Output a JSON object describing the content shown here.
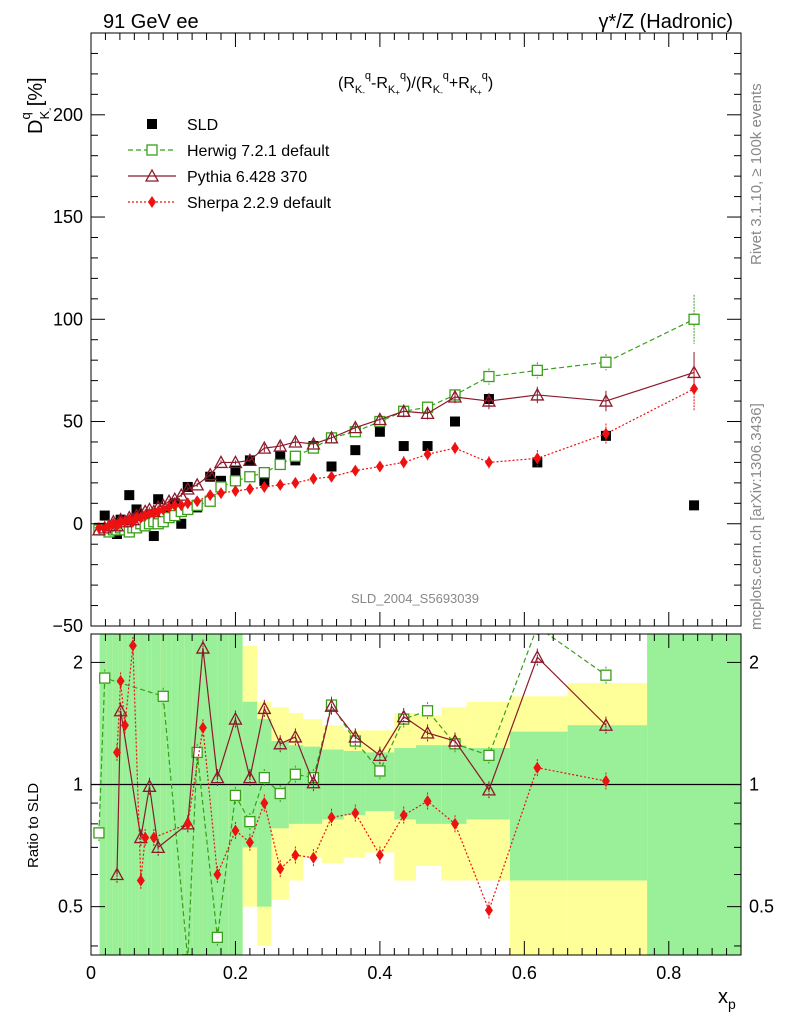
{
  "header": {
    "left_title": "91 GeV ee",
    "right_title": "γ*/Z (Hadronic)"
  },
  "side_labels": {
    "rivet": "Rivet 3.1.10, ≥ 100k events",
    "mcplots": "mcplots.cern.ch [arXiv:1306.3436]"
  },
  "watermark": "SLD_2004_S5693039",
  "chart_data": [
    {
      "type": "scatter",
      "name": "main",
      "title": "(R^q_K- - R^q_K+)/(R^q_K- + R^q_K+)",
      "ylabel": "D^q_K- [%]",
      "xlabel": "x_p",
      "xlim": [
        0,
        0.9
      ],
      "ylim": [
        -50,
        240
      ],
      "yticks": [
        -50,
        0,
        50,
        100,
        150,
        200
      ],
      "series": [
        {
          "name": "SLD",
          "color": "#000000",
          "marker": "square-filled",
          "x": [
            0.011,
            0.019,
            0.025,
            0.031,
            0.036,
            0.041,
            0.047,
            0.053,
            0.058,
            0.063,
            0.069,
            0.075,
            0.081,
            0.087,
            0.093,
            0.1,
            0.108,
            0.116,
            0.125,
            0.134,
            0.147,
            0.165,
            0.18,
            0.2,
            0.22,
            0.24,
            0.262,
            0.283,
            0.308,
            0.333,
            0.366,
            0.4,
            0.433,
            0.466,
            0.504,
            0.551,
            0.618,
            0.713,
            0.835
          ],
          "y": [
            -2,
            4,
            -3,
            -2,
            -5,
            2,
            1,
            14,
            0,
            7,
            -1,
            3,
            4,
            -6,
            12,
            1,
            4,
            10,
            0,
            18,
            8,
            23,
            21,
            26,
            31,
            21,
            33,
            31,
            38,
            28,
            36,
            45,
            38,
            38,
            50,
            61,
            30,
            43,
            9
          ]
        },
        {
          "name": "Herwig 7.2.1 default",
          "color": "#3a9e1a",
          "marker": "square-open",
          "line": "dashed",
          "x": [
            0.011,
            0.019,
            0.025,
            0.031,
            0.036,
            0.041,
            0.047,
            0.053,
            0.058,
            0.063,
            0.069,
            0.075,
            0.081,
            0.087,
            0.093,
            0.1,
            0.108,
            0.116,
            0.125,
            0.134,
            0.147,
            0.165,
            0.18,
            0.2,
            0.22,
            0.24,
            0.262,
            0.283,
            0.308,
            0.333,
            0.366,
            0.4,
            0.433,
            0.466,
            0.504,
            0.551,
            0.618,
            0.713,
            0.835
          ],
          "y": [
            -3,
            -3,
            -4,
            -3,
            -3,
            -2,
            -3,
            -4,
            -2,
            -2,
            0,
            -1,
            0,
            1,
            0,
            1,
            3,
            4,
            6,
            7,
            9,
            11,
            18,
            21,
            23,
            25,
            29,
            33,
            37,
            42,
            45,
            50,
            55,
            57,
            63,
            72,
            75,
            79,
            100
          ],
          "errors": [
            1,
            1,
            1,
            1,
            1,
            1,
            1,
            1,
            1,
            1,
            1,
            1,
            1,
            1,
            1,
            1,
            1,
            1,
            1,
            1,
            1,
            1,
            1,
            1,
            1,
            1,
            1,
            1,
            1,
            1,
            1,
            2,
            2,
            2,
            2,
            4,
            4,
            4,
            12
          ]
        },
        {
          "name": "Pythia 6.428 370",
          "color": "#8b1a2b",
          "marker": "triangle-open",
          "line": "solid",
          "x": [
            0.011,
            0.019,
            0.025,
            0.031,
            0.036,
            0.041,
            0.047,
            0.053,
            0.058,
            0.063,
            0.069,
            0.075,
            0.081,
            0.087,
            0.093,
            0.1,
            0.108,
            0.116,
            0.125,
            0.134,
            0.147,
            0.165,
            0.18,
            0.2,
            0.22,
            0.24,
            0.262,
            0.283,
            0.308,
            0.333,
            0.366,
            0.4,
            0.433,
            0.466,
            0.504,
            0.551,
            0.618,
            0.713,
            0.835
          ],
          "y": [
            -3,
            -2,
            -1,
            1,
            -1,
            2,
            1,
            3,
            2,
            4,
            5,
            6,
            7,
            6,
            8,
            9,
            11,
            12,
            14,
            17,
            19,
            24,
            30,
            30,
            31,
            37,
            38,
            40,
            39,
            42,
            47,
            51,
            55,
            54,
            62,
            60,
            63,
            60,
            74
          ],
          "errors": [
            1,
            1,
            1,
            1,
            1,
            1,
            1,
            1,
            1,
            1,
            1,
            1,
            1,
            1,
            1,
            1,
            1,
            1,
            1,
            1,
            1,
            1,
            1,
            1,
            1,
            2,
            2,
            2,
            2,
            2,
            2,
            2,
            3,
            3,
            3,
            4,
            4,
            5,
            10
          ]
        },
        {
          "name": "Sherpa 2.2.9 default",
          "color": "#ee1111",
          "marker": "diamond-filled",
          "line": "dotted",
          "x": [
            0.011,
            0.019,
            0.025,
            0.031,
            0.036,
            0.041,
            0.047,
            0.053,
            0.058,
            0.063,
            0.069,
            0.075,
            0.081,
            0.087,
            0.093,
            0.1,
            0.108,
            0.116,
            0.125,
            0.134,
            0.147,
            0.165,
            0.18,
            0.2,
            0.22,
            0.24,
            0.262,
            0.283,
            0.308,
            0.333,
            0.366,
            0.4,
            0.433,
            0.466,
            0.504,
            0.551,
            0.618,
            0.713,
            0.835
          ],
          "y": [
            -2,
            -2,
            -1,
            0,
            -1,
            1,
            1,
            2,
            1,
            3,
            3,
            4,
            5,
            5,
            6,
            7,
            8,
            9,
            9,
            10,
            11,
            14,
            15,
            16,
            17,
            18,
            19,
            20,
            22,
            23,
            26,
            28,
            30,
            34,
            37,
            30,
            32,
            44,
            66
          ],
          "errors": [
            1,
            1,
            1,
            1,
            1,
            1,
            1,
            1,
            1,
            1,
            1,
            1,
            1,
            1,
            1,
            1,
            1,
            1,
            1,
            1,
            1,
            1,
            1,
            1,
            1,
            1,
            1,
            2,
            2,
            2,
            2,
            2,
            3,
            3,
            3,
            3,
            4,
            5,
            11
          ]
        }
      ]
    },
    {
      "type": "scatter",
      "name": "ratio",
      "ylabel": "Ratio to SLD",
      "xlabel": "x_p",
      "xlim": [
        0,
        0.9
      ],
      "ylim": [
        0.38,
        2.35
      ],
      "yscale": "log",
      "yticks": [
        0.5,
        1,
        2
      ],
      "xticks": [
        0,
        0.2,
        0.4,
        0.6,
        0.8
      ],
      "bands": {
        "edges": [
          0.012,
          0.022,
          0.03,
          0.038,
          0.044,
          0.05,
          0.056,
          0.061,
          0.066,
          0.072,
          0.078,
          0.084,
          0.09,
          0.096,
          0.104,
          0.112,
          0.12,
          0.13,
          0.14,
          0.155,
          0.175,
          0.19,
          0.21,
          0.23,
          0.25,
          0.274,
          0.294,
          0.32,
          0.35,
          0.38,
          0.42,
          0.45,
          0.485,
          0.52,
          0.58,
          0.66,
          0.77,
          0.9
        ],
        "yellow": [
          [
            0.38,
            2.35
          ],
          [
            0.38,
            2.35
          ],
          [
            0.38,
            2.35
          ],
          [
            0.38,
            2.35
          ],
          [
            0.38,
            2.35
          ],
          [
            0.38,
            2.35
          ],
          [
            0.38,
            2.35
          ],
          [
            0.38,
            2.35
          ],
          [
            0.38,
            2.35
          ],
          [
            0.38,
            2.35
          ],
          [
            0.38,
            2.35
          ],
          [
            0.38,
            2.35
          ],
          [
            0.38,
            2.35
          ],
          [
            0.38,
            2.35
          ],
          [
            0.38,
            2.35
          ],
          [
            0.38,
            2.35
          ],
          [
            0.38,
            2.35
          ],
          [
            0.38,
            2.35
          ],
          [
            0.38,
            2.35
          ],
          [
            0.38,
            2.35
          ],
          [
            0.38,
            2.35
          ],
          [
            0.38,
            2.35
          ],
          [
            0.5,
            2.2
          ],
          [
            0.4,
            1.6
          ],
          [
            0.52,
            1.55
          ],
          [
            0.58,
            1.5
          ],
          [
            0.66,
            1.45
          ],
          [
            0.64,
            1.4
          ],
          [
            0.66,
            1.36
          ],
          [
            0.68,
            1.36
          ],
          [
            0.58,
            1.5
          ],
          [
            0.63,
            1.48
          ],
          [
            0.58,
            1.55
          ],
          [
            0.58,
            1.6
          ],
          [
            0.38,
            1.65
          ],
          [
            0.38,
            1.78
          ],
          [
            0.38,
            2.35
          ]
        ],
        "green": [
          [
            0.38,
            2.35
          ],
          [
            0.38,
            2.35
          ],
          [
            0.38,
            2.35
          ],
          [
            0.38,
            2.35
          ],
          [
            0.38,
            2.35
          ],
          [
            0.38,
            2.35
          ],
          [
            0.38,
            2.35
          ],
          [
            0.38,
            2.35
          ],
          [
            0.38,
            2.35
          ],
          [
            0.38,
            2.35
          ],
          [
            0.38,
            2.35
          ],
          [
            0.38,
            2.35
          ],
          [
            0.38,
            2.35
          ],
          [
            0.38,
            2.35
          ],
          [
            0.38,
            2.35
          ],
          [
            0.38,
            2.35
          ],
          [
            0.38,
            2.35
          ],
          [
            0.38,
            2.35
          ],
          [
            0.38,
            2.35
          ],
          [
            0.38,
            2.35
          ],
          [
            0.38,
            2.35
          ],
          [
            0.38,
            2.35
          ],
          [
            0.7,
            1.6
          ],
          [
            0.5,
            1.45
          ],
          [
            0.78,
            1.28
          ],
          [
            0.8,
            1.25
          ],
          [
            0.8,
            1.24
          ],
          [
            0.82,
            1.22
          ],
          [
            0.84,
            1.21
          ],
          [
            0.86,
            1.2
          ],
          [
            0.82,
            1.23
          ],
          [
            0.8,
            1.25
          ],
          [
            0.8,
            1.25
          ],
          [
            0.82,
            1.23
          ],
          [
            0.58,
            1.35
          ],
          [
            0.58,
            1.4
          ],
          [
            0.38,
            2.35
          ]
        ]
      },
      "series": [
        {
          "name": "Herwig 7.2.1 default",
          "color": "#3a9e1a",
          "marker": "square-open",
          "x": [
            0.011,
            0.019,
            0.1,
            0.134,
            0.147,
            0.175,
            0.2,
            0.22,
            0.24,
            0.262,
            0.283,
            0.308,
            0.333,
            0.366,
            0.4,
            0.433,
            0.466,
            0.504,
            0.551,
            0.618,
            0.713
          ],
          "y": [
            0.76,
            1.83,
            1.65,
            0.37,
            1.2,
            0.42,
            0.94,
            0.81,
            1.04,
            0.95,
            1.06,
            1.04,
            1.57,
            1.28,
            1.08,
            1.45,
            1.52,
            1.26,
            1.18,
            2.45,
            1.86
          ]
        },
        {
          "name": "Pythia 6.428 370",
          "color": "#8b1a2b",
          "marker": "triangle-open",
          "x": [
            0.036,
            0.041,
            0.069,
            0.081,
            0.093,
            0.134,
            0.155,
            0.175,
            0.2,
            0.22,
            0.24,
            0.262,
            0.283,
            0.308,
            0.333,
            0.366,
            0.4,
            0.433,
            0.466,
            0.504,
            0.551,
            0.618,
            0.713
          ],
          "y": [
            0.6,
            1.52,
            0.74,
            0.99,
            0.7,
            0.8,
            2.17,
            1.04,
            1.45,
            1.04,
            1.54,
            1.26,
            1.31,
            1.01,
            1.56,
            1.31,
            1.18,
            1.47,
            1.34,
            1.28,
            0.97,
            2.06,
            1.4
          ]
        },
        {
          "name": "Sherpa 2.2.9 default",
          "color": "#ee1111",
          "marker": "diamond-filled",
          "x": [
            0.036,
            0.041,
            0.047,
            0.058,
            0.069,
            0.075,
            0.087,
            0.134,
            0.155,
            0.175,
            0.2,
            0.22,
            0.24,
            0.262,
            0.283,
            0.308,
            0.333,
            0.366,
            0.4,
            0.433,
            0.466,
            0.504,
            0.551,
            0.618,
            0.713
          ],
          "y": [
            1.2,
            1.8,
            1.4,
            2.2,
            0.58,
            0.74,
            0.74,
            0.8,
            1.38,
            0.6,
            0.77,
            0.72,
            0.9,
            0.62,
            0.67,
            0.66,
            0.83,
            0.85,
            0.67,
            0.84,
            0.91,
            0.8,
            0.49,
            1.1,
            1.02
          ]
        }
      ]
    }
  ]
}
